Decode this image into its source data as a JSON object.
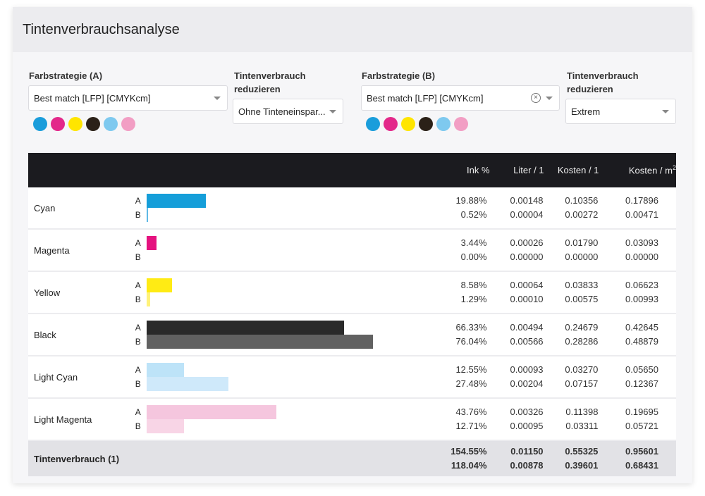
{
  "title": "Tintenverbrauchsanalyse",
  "strategy_a": {
    "label": "Farbstrategie (A)",
    "value": "Best match [LFP] [CMYKcm]",
    "swatches": [
      "#1a9ddb",
      "#e3288a",
      "#ffe500",
      "#2b2118",
      "#7ec9ef",
      "#f29ec4"
    ]
  },
  "reduce_a": {
    "label_line1": "Tintenverbrauch",
    "label_line2": "reduzieren",
    "value": "Ohne Tinteneinspar..."
  },
  "strategy_b": {
    "label": "Farbstrategie (B)",
    "value": "Best match [LFP] [CMYKcm]",
    "clear_icon": "⊗",
    "swatches": [
      "#1a9ddb",
      "#e3288a",
      "#ffe500",
      "#2b2118",
      "#7ec9ef",
      "#f29ec4"
    ]
  },
  "reduce_b": {
    "label_line1": "Tintenverbrauch",
    "label_line2": "reduzieren",
    "value": "Extrem"
  },
  "table": {
    "headers": {
      "ink_pct": "Ink %",
      "liter": "Liter / 1",
      "kosten": "Kosten / 1",
      "kosten_m2": "Kosten / m",
      "kosten_m2_sup": "2"
    },
    "label_a": "A",
    "label_b": "B",
    "rows": [
      {
        "name": "Cyan",
        "color_a": "#159ed9",
        "color_b": "#5fb9e6",
        "a": {
          "ink": "19.88%",
          "liter": "0.00148",
          "kosten": "0.10356",
          "kosten_m2": "0.17896",
          "pct": 19.88
        },
        "b": {
          "ink": "0.52%",
          "liter": "0.00004",
          "kosten": "0.00272",
          "kosten_m2": "0.00471",
          "pct": 0.52
        }
      },
      {
        "name": "Magenta",
        "color_a": "#e5127f",
        "color_b": "#ee6aae",
        "a": {
          "ink": "3.44%",
          "liter": "0.00026",
          "kosten": "0.01790",
          "kosten_m2": "0.03093",
          "pct": 3.44
        },
        "b": {
          "ink": "0.00%",
          "liter": "0.00000",
          "kosten": "0.00000",
          "kosten_m2": "0.00000",
          "pct": 0.0
        }
      },
      {
        "name": "Yellow",
        "color_a": "#ffeb14",
        "color_b": "#fff27a",
        "a": {
          "ink": "8.58%",
          "liter": "0.00064",
          "kosten": "0.03833",
          "kosten_m2": "0.06623",
          "pct": 8.58
        },
        "b": {
          "ink": "1.29%",
          "liter": "0.00010",
          "kosten": "0.00575",
          "kosten_m2": "0.00993",
          "pct": 1.29
        }
      },
      {
        "name": "Black",
        "color_a": "#2a2a2a",
        "color_b": "#616161",
        "a": {
          "ink": "66.33%",
          "liter": "0.00494",
          "kosten": "0.24679",
          "kosten_m2": "0.42645",
          "pct": 66.33
        },
        "b": {
          "ink": "76.04%",
          "liter": "0.00566",
          "kosten": "0.28286",
          "kosten_m2": "0.48879",
          "pct": 76.04
        }
      },
      {
        "name": "Light Cyan",
        "color_a": "#bde3f8",
        "color_b": "#cfe9fa",
        "a": {
          "ink": "12.55%",
          "liter": "0.00093",
          "kosten": "0.03270",
          "kosten_m2": "0.05650",
          "pct": 12.55
        },
        "b": {
          "ink": "27.48%",
          "liter": "0.00204",
          "kosten": "0.07157",
          "kosten_m2": "0.12367",
          "pct": 27.48
        }
      },
      {
        "name": "Light Magenta",
        "color_a": "#f5c6de",
        "color_b": "#f8d5e6",
        "a": {
          "ink": "43.76%",
          "liter": "0.00326",
          "kosten": "0.11398",
          "kosten_m2": "0.19695",
          "pct": 43.76
        },
        "b": {
          "ink": "12.71%",
          "liter": "0.00095",
          "kosten": "0.03311",
          "kosten_m2": "0.05721",
          "pct": 12.71
        }
      }
    ],
    "total": {
      "name": "Tintenverbrauch (1)",
      "a": {
        "ink": "154.55%",
        "liter": "0.01150",
        "kosten": "0.55325",
        "kosten_m2": "0.95601"
      },
      "b": {
        "ink": "118.04%",
        "liter": "0.00878",
        "kosten": "0.39601",
        "kosten_m2": "0.68431"
      }
    }
  }
}
